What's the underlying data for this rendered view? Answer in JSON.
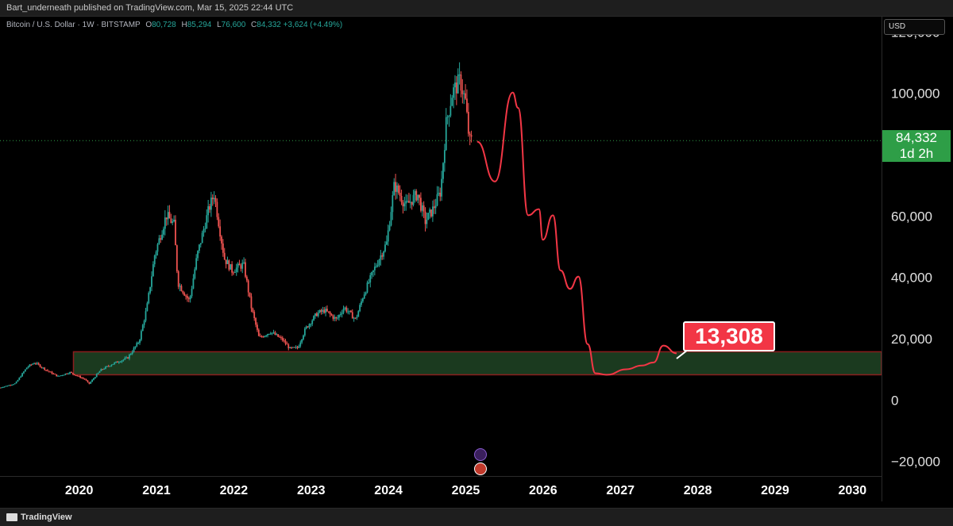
{
  "header": {
    "published_text": "Bart_underneath published on TradingView.com, Mar 15, 2025 22:44 UTC"
  },
  "legend": {
    "symbol": "Bitcoin / U.S. Dollar · 1W · BITSTAMP",
    "open_label": "O",
    "open": "80,728",
    "high_label": "H",
    "high": "85,294",
    "low_label": "L",
    "low": "76,600",
    "close_label": "C",
    "close": "84,332",
    "change": "+3,624 (+4.49%)"
  },
  "axis": {
    "currency": "USD",
    "y_ticks": [
      "120,000",
      "100,000",
      "60,000",
      "40,000",
      "20,000",
      "0",
      "−20,000"
    ],
    "y_values": [
      120000,
      100000,
      60000,
      40000,
      20000,
      0,
      -20000
    ],
    "x_ticks": [
      "2020",
      "2021",
      "2022",
      "2023",
      "2024",
      "2025",
      "2026",
      "2027",
      "2028",
      "2029",
      "2030"
    ]
  },
  "price_tag": {
    "price": "84,332",
    "countdown": "1d 2h",
    "value": 84332
  },
  "callout": {
    "label": "13,308",
    "value": 13308
  },
  "footer": {
    "brand": "TradingView"
  },
  "colors": {
    "up": "#26a69a",
    "down": "#ef5350",
    "projection": "#f23645",
    "zone_fill": "#1b3a1f",
    "zone_border": "#8b1e1e",
    "price_tag": "#2e9e47"
  },
  "chart_data": {
    "type": "candlestick",
    "title": "Bitcoin / U.S. Dollar · 1W · BITSTAMP",
    "ylim": [
      -25000,
      125000
    ],
    "xlim": [
      2019.1,
      2030.5
    ],
    "zone": {
      "y_low": 8000,
      "y_high": 15500,
      "x_start": 2020.05,
      "x_end": 2030.5
    },
    "price_path": [
      [
        2019.1,
        3800
      ],
      [
        2019.3,
        5200
      ],
      [
        2019.45,
        10500
      ],
      [
        2019.55,
        12000
      ],
      [
        2019.7,
        9500
      ],
      [
        2019.85,
        7500
      ],
      [
        2020.0,
        8800
      ],
      [
        2020.2,
        6500
      ],
      [
        2020.25,
        5000
      ],
      [
        2020.4,
        9500
      ],
      [
        2020.55,
        11500
      ],
      [
        2020.75,
        13500
      ],
      [
        2020.9,
        19000
      ],
      [
        2021.0,
        30000
      ],
      [
        2021.1,
        47000
      ],
      [
        2021.25,
        60000
      ],
      [
        2021.35,
        57000
      ],
      [
        2021.4,
        38000
      ],
      [
        2021.55,
        32000
      ],
      [
        2021.65,
        47000
      ],
      [
        2021.8,
        62000
      ],
      [
        2021.87,
        67000
      ],
      [
        2022.0,
        46000
      ],
      [
        2022.1,
        42000
      ],
      [
        2022.25,
        44000
      ],
      [
        2022.35,
        30000
      ],
      [
        2022.45,
        20000
      ],
      [
        2022.6,
        22000
      ],
      [
        2022.75,
        19500
      ],
      [
        2022.85,
        16500
      ],
      [
        2022.95,
        16800
      ],
      [
        2023.05,
        23000
      ],
      [
        2023.2,
        28000
      ],
      [
        2023.3,
        29000
      ],
      [
        2023.45,
        26000
      ],
      [
        2023.55,
        30000
      ],
      [
        2023.7,
        26000
      ],
      [
        2023.8,
        34000
      ],
      [
        2023.95,
        43000
      ],
      [
        2024.1,
        51000
      ],
      [
        2024.2,
        70000
      ],
      [
        2024.35,
        63000
      ],
      [
        2024.5,
        67000
      ],
      [
        2024.6,
        58000
      ],
      [
        2024.7,
        62000
      ],
      [
        2024.8,
        68000
      ],
      [
        2024.87,
        90000
      ],
      [
        2024.95,
        100000
      ],
      [
        2025.05,
        104000
      ],
      [
        2025.12,
        97000
      ],
      [
        2025.17,
        84000
      ],
      [
        2025.2,
        84332
      ]
    ],
    "projection_path": [
      [
        2025.27,
        84000
      ],
      [
        2025.5,
        71000
      ],
      [
        2025.73,
        100000
      ],
      [
        2025.8,
        95000
      ],
      [
        2025.93,
        60000
      ],
      [
        2026.07,
        62000
      ],
      [
        2026.12,
        52000
      ],
      [
        2026.25,
        60000
      ],
      [
        2026.35,
        42000
      ],
      [
        2026.47,
        36000
      ],
      [
        2026.58,
        40000
      ],
      [
        2026.7,
        18000
      ],
      [
        2026.8,
        8500
      ],
      [
        2026.95,
        8000
      ],
      [
        2027.2,
        9800
      ],
      [
        2027.4,
        11000
      ],
      [
        2027.55,
        12000
      ],
      [
        2027.68,
        17500
      ],
      [
        2027.85,
        15000
      ]
    ]
  }
}
